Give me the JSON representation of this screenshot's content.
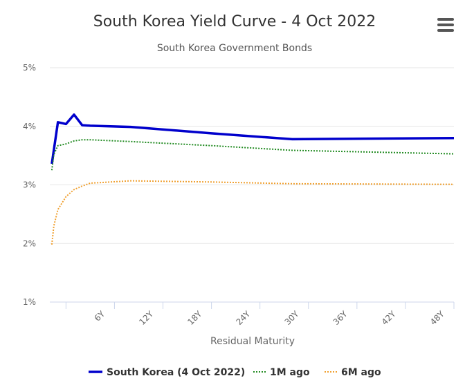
{
  "chart_data": {
    "type": "line",
    "title": "South Korea Yield Curve - 4 Oct 2022",
    "subtitle": "South Korea Government Bonds",
    "xlabel": "Residual Maturity",
    "ylabel": "",
    "xlim": [
      0,
      50
    ],
    "ylim": [
      1,
      5
    ],
    "y_ticks": [
      "1%",
      "2%",
      "3%",
      "4%",
      "5%"
    ],
    "y_tick_values": [
      1,
      2,
      3,
      4,
      5
    ],
    "x_ticks": [
      "6Y",
      "12Y",
      "18Y",
      "24Y",
      "30Y",
      "36Y",
      "42Y",
      "48Y"
    ],
    "x_tick_values": [
      6,
      12,
      18,
      24,
      30,
      36,
      42,
      48
    ],
    "grid": "horizontal",
    "legend_position": "bottom",
    "series": [
      {
        "name": "South Korea (4 Oct 2022)",
        "color": "#0000cc",
        "style": "solid",
        "x": [
          0.25,
          1,
          2,
          3,
          4,
          5,
          10,
          20,
          30,
          50
        ],
        "values": [
          3.36,
          4.07,
          4.04,
          4.2,
          4.02,
          4.01,
          3.99,
          3.88,
          3.78,
          3.8
        ]
      },
      {
        "name": "1M ago",
        "color": "#228b22",
        "style": "dotted",
        "x": [
          0.25,
          0.5,
          1,
          2,
          3,
          4,
          5,
          10,
          20,
          30,
          50
        ],
        "values": [
          3.25,
          3.52,
          3.67,
          3.7,
          3.75,
          3.77,
          3.77,
          3.74,
          3.67,
          3.59,
          3.53
        ]
      },
      {
        "name": "6M ago",
        "color": "#f0a030",
        "style": "dotted",
        "x": [
          0.25,
          0.5,
          1,
          2,
          3,
          4,
          5,
          10,
          20,
          30,
          50
        ],
        "values": [
          1.98,
          2.3,
          2.58,
          2.8,
          2.92,
          2.98,
          3.03,
          3.07,
          3.05,
          3.02,
          3.01
        ]
      }
    ]
  },
  "menu_icon": "hamburger-menu-icon"
}
